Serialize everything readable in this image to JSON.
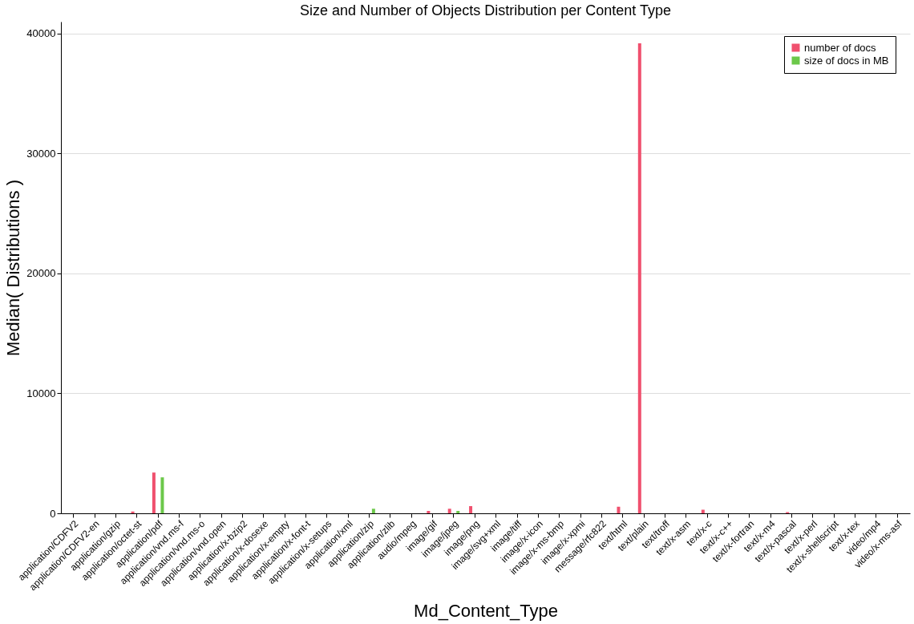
{
  "chart_data": {
    "type": "bar",
    "title": "Size and Number of Objects Distribution per Content Type",
    "xlabel": "Md_Content_Type",
    "ylabel": "Median( Distributions )",
    "categories": [
      "application/CDFV2",
      "application/CDFV2-en",
      "application/gzip",
      "application/octet-st",
      "application/pdf",
      "application/vnd.ms-f",
      "application/vnd.ms-o",
      "application/vnd.open",
      "application/x-bzip2",
      "application/x-dosexe",
      "application/x-empty",
      "application/x-font-t",
      "application/x-setups",
      "application/xml",
      "application/zip",
      "application/zlib",
      "audio/mpeg",
      "image/gif",
      "image/jpeg",
      "image/png",
      "image/svg+xml",
      "image/tiff",
      "image/x-icon",
      "image/x-ms-bmp",
      "image/x-xpmi",
      "message/rfc822",
      "text/html",
      "text/plain",
      "text/troff",
      "text/x-asm",
      "text/x-c",
      "text/x-c++",
      "text/x-fortran",
      "text/x-m4",
      "text/x-pascal",
      "text/x-perl",
      "text/x-shellscript",
      "text/x-tex",
      "video/mp4",
      "video/x-ms-asf"
    ],
    "series": [
      {
        "name": "number of docs",
        "color": "#f0506e",
        "values": [
          0,
          0,
          0,
          150,
          3400,
          0,
          0,
          0,
          0,
          0,
          0,
          0,
          0,
          0,
          0,
          0,
          0,
          200,
          380,
          600,
          0,
          0,
          0,
          0,
          0,
          0,
          550,
          39200,
          0,
          0,
          300,
          0,
          0,
          0,
          100,
          0,
          0,
          0,
          0,
          0
        ]
      },
      {
        "name": "size of docs in MB",
        "color": "#6cc84a",
        "values": [
          0,
          0,
          0,
          0,
          3000,
          0,
          0,
          0,
          0,
          0,
          0,
          0,
          0,
          0,
          380,
          0,
          0,
          0,
          200,
          0,
          0,
          0,
          0,
          0,
          0,
          0,
          0,
          0,
          0,
          0,
          0,
          0,
          0,
          0,
          0,
          0,
          0,
          0,
          0,
          0
        ]
      }
    ],
    "ylim": [
      0,
      41000
    ],
    "yticks": [
      0,
      10000,
      20000,
      30000,
      40000
    ],
    "grid": "y",
    "legend": "top right"
  }
}
